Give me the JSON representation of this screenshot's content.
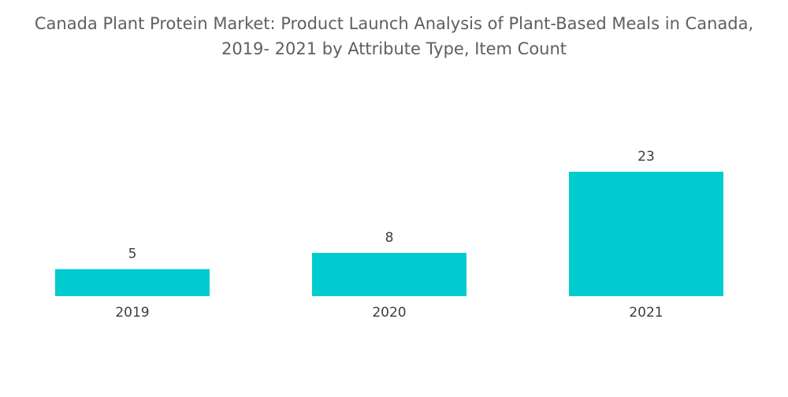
{
  "chart_data": {
    "type": "bar",
    "title_lines": [
      "Canada Plant Protein Market: Product Launch Analysis of Plant-Based Meals in Canada,",
      "2019- 2021 by Attribute Type, Item Count"
    ],
    "categories": [
      "2019",
      "2020",
      "2021"
    ],
    "values": [
      5,
      8,
      23
    ],
    "data_labels": [
      "5",
      "8",
      "23"
    ],
    "xlabel": "",
    "ylabel": "",
    "ylim": [
      0,
      32
    ],
    "grid": false,
    "legend": "none",
    "bar_color": "#00cccf"
  }
}
